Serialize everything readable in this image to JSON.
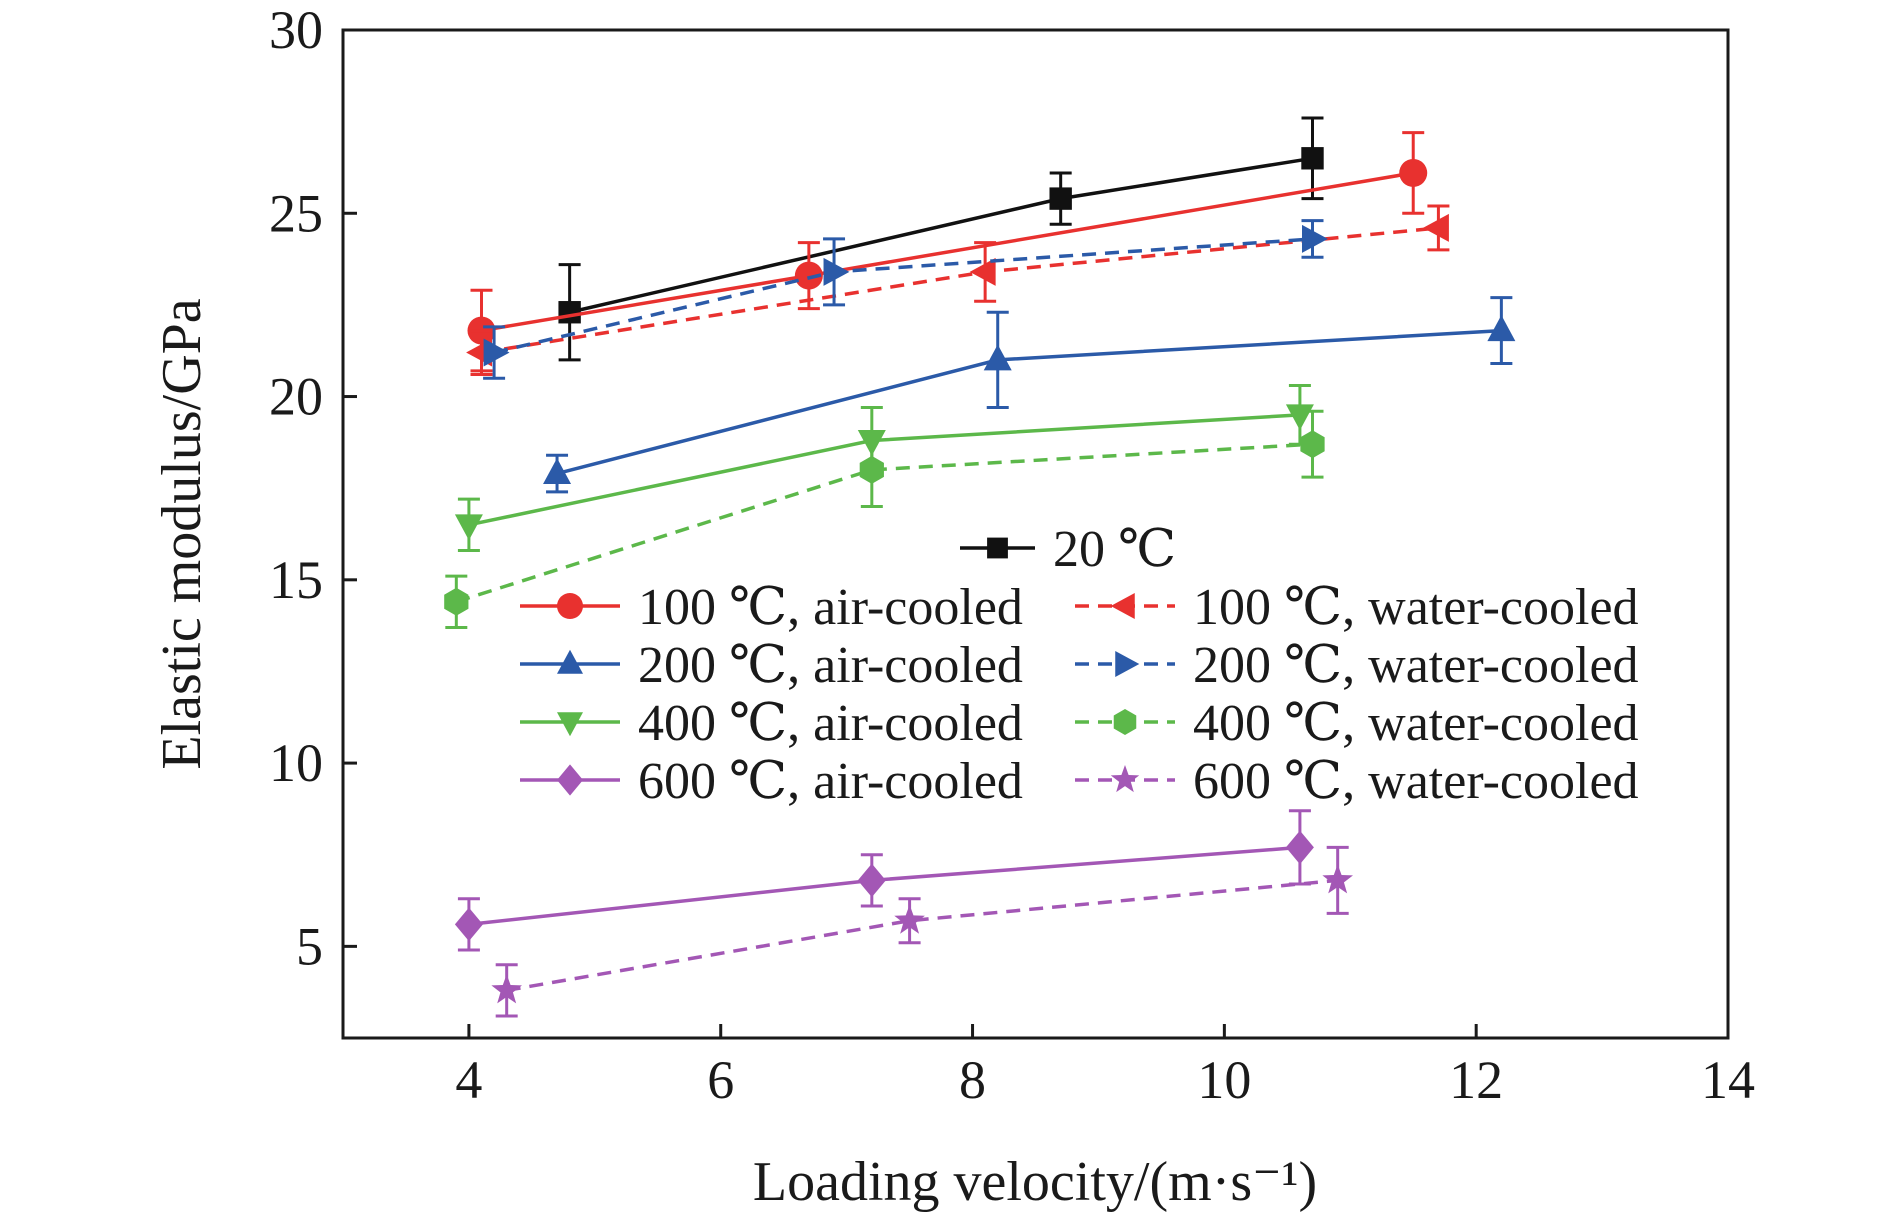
{
  "chart_data": {
    "type": "line",
    "xlabel": "Loading velocity/(m·s⁻¹)",
    "ylabel": "Elastic modulus/GPa",
    "xlim": [
      3,
      14
    ],
    "ylim": [
      2.5,
      30
    ],
    "x_ticks": [
      4,
      6,
      8,
      10,
      12,
      14
    ],
    "y_ticks": [
      5,
      10,
      15,
      20,
      25,
      30
    ],
    "x_tick_labels": [
      "4",
      "6",
      "8",
      "10",
      "12",
      "14"
    ],
    "y_tick_labels": [
      "5",
      "10",
      "15",
      "20",
      "25",
      "30"
    ],
    "grid": false,
    "legend_position": "center",
    "series": [
      {
        "name": "20 ℃",
        "color": "#111111",
        "marker": "square",
        "dash": false,
        "x": [
          4.8,
          8.7,
          10.7
        ],
        "y": [
          22.3,
          25.4,
          26.5
        ],
        "err": [
          1.3,
          0.7,
          1.1
        ]
      },
      {
        "name": "100 ℃, air-cooled",
        "color": "#e8312f",
        "marker": "circle",
        "dash": false,
        "x": [
          4.1,
          6.7,
          11.5
        ],
        "y": [
          21.8,
          23.3,
          26.1
        ],
        "err": [
          1.1,
          0.9,
          1.1
        ]
      },
      {
        "name": "100 ℃, water-cooled",
        "color": "#e8312f",
        "marker": "triangle-left",
        "dash": true,
        "x": [
          4.1,
          8.1,
          11.7
        ],
        "y": [
          21.2,
          23.4,
          24.6
        ],
        "err": [
          0.6,
          0.8,
          0.6
        ]
      },
      {
        "name": "200 ℃, air-cooled",
        "color": "#2b5aa8",
        "marker": "triangle-up",
        "dash": false,
        "x": [
          4.7,
          8.2,
          12.2
        ],
        "y": [
          17.9,
          21.0,
          21.8
        ],
        "err": [
          0.5,
          1.3,
          0.9
        ]
      },
      {
        "name": "200 ℃, water-cooled",
        "color": "#2b5aa8",
        "marker": "triangle-right",
        "dash": true,
        "x": [
          4.2,
          6.9,
          10.7
        ],
        "y": [
          21.2,
          23.4,
          24.3
        ],
        "err": [
          0.7,
          0.9,
          0.5
        ]
      },
      {
        "name": "400 ℃, air-cooled",
        "color": "#5cb84a",
        "marker": "triangle-down",
        "dash": false,
        "x": [
          4.0,
          7.2,
          10.6
        ],
        "y": [
          16.5,
          18.8,
          19.5
        ],
        "err": [
          0.7,
          0.9,
          0.8
        ]
      },
      {
        "name": "400 ℃, water-cooled",
        "color": "#5cb84a",
        "marker": "hexagon",
        "dash": true,
        "x": [
          3.9,
          7.2,
          10.7
        ],
        "y": [
          14.4,
          18.0,
          18.7
        ],
        "err": [
          0.7,
          1.0,
          0.9
        ]
      },
      {
        "name": "600 ℃, air-cooled",
        "color": "#a357b5",
        "marker": "diamond",
        "dash": false,
        "x": [
          4.0,
          7.2,
          10.6
        ],
        "y": [
          5.6,
          6.8,
          7.7
        ],
        "err": [
          0.7,
          0.7,
          1.0
        ]
      },
      {
        "name": "600 ℃, water-cooled",
        "color": "#a357b5",
        "marker": "star",
        "dash": true,
        "x": [
          4.3,
          7.5,
          10.9
        ],
        "y": [
          3.8,
          5.7,
          6.8
        ],
        "err": [
          0.7,
          0.6,
          0.9
        ]
      }
    ]
  }
}
